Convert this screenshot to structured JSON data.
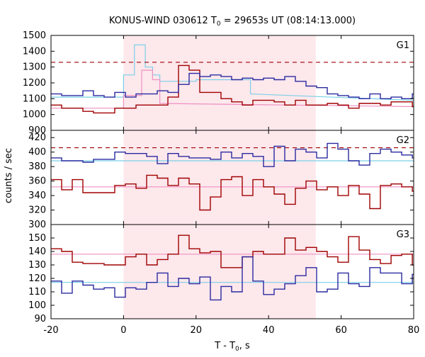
{
  "chart_data": {
    "type": "line",
    "title_prefix": "KONUS-WIND 030612 T",
    "title_sub": "0",
    "title_suffix": " = 29653s UT (08:14:13.000)",
    "xlabel_prefix": "T - T",
    "xlabel_sub": "0",
    "xlabel_suffix": ", s",
    "ylabel": "counts / sec",
    "xlim": [
      -20,
      80
    ],
    "xticks": [
      "-20",
      "0",
      "20",
      "40",
      "60",
      "80"
    ],
    "highlight": {
      "x0": 0,
      "x1": 53
    },
    "colors": {
      "background_band": "#fde8ec",
      "series_dark_red": "#a00000",
      "series_blue": "#2a2aa0",
      "fit_light_blue": "#7ad0e8",
      "fit_pink": "#ee90c0",
      "threshold": "#a00000"
    },
    "panels": [
      {
        "label": "G1",
        "ylim": [
          900,
          1500
        ],
        "yticks": [
          "900",
          "1000",
          "1100",
          "1200",
          "1300",
          "1400",
          "1500"
        ],
        "threshold": 1330,
        "red_fit": {
          "x": [
            -20,
            0,
            0,
            5,
            5,
            8,
            8,
            10,
            10,
            80
          ],
          "y": [
            1040,
            1040,
            1120,
            1120,
            1280,
            1280,
            1220,
            1220,
            1070,
            1050
          ]
        },
        "blue_fit": {
          "x": [
            -20,
            0,
            0,
            3,
            3,
            6,
            6,
            8,
            8,
            10,
            10,
            20,
            20,
            35,
            35,
            80
          ],
          "y": [
            1110,
            1110,
            1250,
            1250,
            1440,
            1440,
            1300,
            1300,
            1250,
            1250,
            1210,
            1210,
            1220,
            1220,
            1130,
            1090
          ]
        },
        "series": [
          {
            "color_key": "series_dark_red",
            "x0": -20,
            "step": 2.93,
            "y": [
              1060,
              1040,
              1040,
              1020,
              1010,
              1010,
              1040,
              1040,
              1060,
              1060,
              1060,
              1110,
              1310,
              1280,
              1140,
              1140,
              1100,
              1080,
              1060,
              1090,
              1090,
              1080,
              1060,
              1090,
              1060,
              1060,
              1070,
              1060,
              1040,
              1070,
              1070,
              1060,
              1080,
              1080,
              1050
            ]
          },
          {
            "color_key": "series_blue",
            "x0": -20,
            "step": 2.93,
            "y": [
              1130,
              1120,
              1120,
              1150,
              1120,
              1110,
              1140,
              1110,
              1130,
              1130,
              1150,
              1140,
              1190,
              1260,
              1240,
              1250,
              1240,
              1220,
              1230,
              1220,
              1230,
              1220,
              1240,
              1210,
              1180,
              1170,
              1130,
              1120,
              1110,
              1100,
              1130,
              1100,
              1110,
              1100,
              1130
            ]
          }
        ]
      },
      {
        "label": "G2",
        "ylim": [
          300,
          430
        ],
        "yticks": [
          "300",
          "320",
          "340",
          "360",
          "380",
          "400",
          "420"
        ],
        "threshold": 406,
        "red_fit": {
          "x": [
            -20,
            80
          ],
          "y": [
            352,
            352
          ]
        },
        "blue_fit": {
          "x": [
            -20,
            80
          ],
          "y": [
            388,
            388
          ]
        },
        "series": [
          {
            "color_key": "series_dark_red",
            "x0": -20,
            "step": 2.93,
            "y": [
              362,
              348,
              362,
              344,
              344,
              344,
              354,
              356,
              350,
              368,
              364,
              354,
              364,
              356,
              320,
              338,
              362,
              366,
              340,
              362,
              352,
              342,
              328,
              350,
              360,
              348,
              352,
              340,
              354,
              342,
              322,
              354,
              356,
              352,
              346
            ]
          },
          {
            "color_key": "series_blue",
            "x0": -20,
            "step": 2.93,
            "y": [
              392,
              388,
              388,
              386,
              390,
              390,
              400,
              398,
              398,
              394,
              384,
              398,
              394,
              392,
              392,
              390,
              400,
              392,
              398,
              394,
              380,
              408,
              388,
              404,
              400,
              392,
              412,
              404,
              388,
              382,
              398,
              404,
              400,
              396,
              392
            ]
          }
        ]
      },
      {
        "label": "G3",
        "ylim": [
          90,
          160
        ],
        "yticks": [
          "90",
          "100",
          "110",
          "120",
          "130",
          "140",
          "150"
        ],
        "threshold": null,
        "red_fit": {
          "x": [
            -20,
            80
          ],
          "y": [
            138,
            138
          ]
        },
        "blue_fit": {
          "x": [
            -20,
            80
          ],
          "y": [
            117,
            117
          ]
        },
        "series": [
          {
            "color_key": "series_dark_red",
            "x0": -20,
            "step": 2.93,
            "y": [
              142,
              140,
              132,
              131,
              131,
              130,
              130,
              136,
              138,
              130,
              134,
              138,
              152,
              142,
              139,
              140,
              128,
              128,
              136,
              140,
              138,
              138,
              150,
              141,
              143,
              140,
              136,
              132,
              151,
              141,
              134,
              131,
              137,
              138,
              130
            ]
          },
          {
            "color_key": "series_blue",
            "x0": -20,
            "step": 2.93,
            "y": [
              118,
              109,
              118,
              115,
              112,
              113,
              106,
              113,
              112,
              117,
              124,
              114,
              120,
              116,
              121,
              104,
              114,
              110,
              136,
              118,
              108,
              112,
              116,
              122,
              128,
              110,
              112,
              124,
              116,
              114,
              128,
              124,
              124,
              116,
              123
            ]
          }
        ]
      }
    ]
  }
}
